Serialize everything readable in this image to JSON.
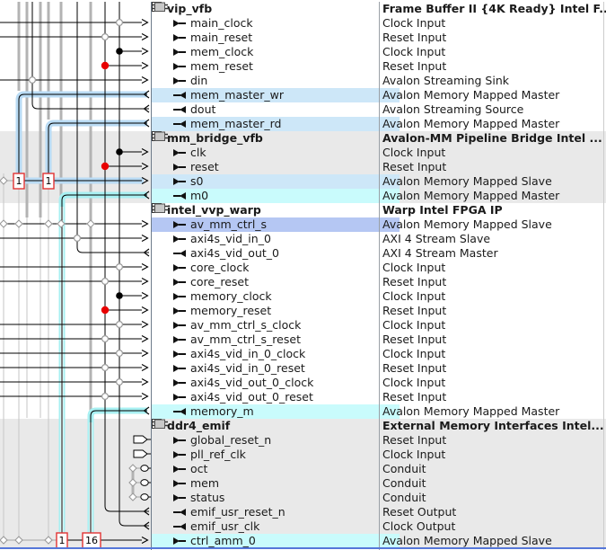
{
  "colors": {
    "group_gray": "#e9e9e9",
    "highlight_blue": "#cde7f8",
    "highlight_cyan": "#c9fbfc",
    "highlight_select": "#b5c7f3",
    "halo_blue": "#b9dbf4",
    "halo_cyan": "#a8f0f2",
    "wire_gray": "#b3b3b3",
    "junction_red": "#e80000",
    "arbitration_border": "#e23333",
    "bottom_indicator": "#5577d9"
  },
  "arbitration": {
    "s0": [
      "1",
      "1"
    ],
    "ctrl_amm_0": [
      "1",
      "16"
    ]
  },
  "rows": [
    {
      "type": "header",
      "name": "vip_vfb",
      "desc": "Frame Buffer II {4K Ready} Intel F...",
      "group": "white"
    },
    {
      "type": "signal",
      "dir": "in",
      "name": "main_clock",
      "desc": "Clock Input",
      "group": "white"
    },
    {
      "type": "signal",
      "dir": "in",
      "name": "main_reset",
      "desc": "Reset Input",
      "group": "white"
    },
    {
      "type": "signal",
      "dir": "in",
      "name": "mem_clock",
      "desc": "Clock Input",
      "group": "white"
    },
    {
      "type": "signal",
      "dir": "in",
      "name": "mem_reset",
      "desc": "Reset Input",
      "group": "white"
    },
    {
      "type": "signal",
      "dir": "in",
      "name": "din",
      "desc": "Avalon Streaming Sink",
      "group": "white"
    },
    {
      "type": "signal",
      "dir": "out",
      "name": "mem_master_wr",
      "desc": "Avalon Memory Mapped Master",
      "group": "white",
      "hl": "blue"
    },
    {
      "type": "signal",
      "dir": "out",
      "name": "dout",
      "desc": "Avalon Streaming Source",
      "group": "white"
    },
    {
      "type": "signal",
      "dir": "out",
      "name": "mem_master_rd",
      "desc": "Avalon Memory Mapped Master",
      "group": "white",
      "hl": "blue"
    },
    {
      "type": "header",
      "name": "mm_bridge_vfb",
      "desc": "Avalon-MM Pipeline Bridge Intel ...",
      "group": "gray"
    },
    {
      "type": "signal",
      "dir": "in",
      "name": "clk",
      "desc": "Clock Input",
      "group": "gray"
    },
    {
      "type": "signal",
      "dir": "in",
      "name": "reset",
      "desc": "Reset Input",
      "group": "gray"
    },
    {
      "type": "signal",
      "dir": "in",
      "name": "s0",
      "desc": "Avalon Memory Mapped Slave",
      "group": "gray",
      "hl": "blue"
    },
    {
      "type": "signal",
      "dir": "out",
      "name": "m0",
      "desc": "Avalon Memory Mapped Master",
      "group": "gray",
      "hl": "cyan"
    },
    {
      "type": "header",
      "name": "intel_vvp_warp",
      "desc": "Warp Intel FPGA IP",
      "group": "white"
    },
    {
      "type": "signal",
      "dir": "in",
      "name": "av_mm_ctrl_s",
      "desc": "Avalon Memory Mapped Slave",
      "group": "white",
      "hl": "select"
    },
    {
      "type": "signal",
      "dir": "in",
      "name": "axi4s_vid_in_0",
      "desc": "AXI 4 Stream Slave",
      "group": "white"
    },
    {
      "type": "signal",
      "dir": "out",
      "name": "axi4s_vid_out_0",
      "desc": "AXI 4 Stream Master",
      "group": "white"
    },
    {
      "type": "signal",
      "dir": "in",
      "name": "core_clock",
      "desc": "Clock Input",
      "group": "white"
    },
    {
      "type": "signal",
      "dir": "in",
      "name": "core_reset",
      "desc": "Reset Input",
      "group": "white"
    },
    {
      "type": "signal",
      "dir": "in",
      "name": "memory_clock",
      "desc": "Clock Input",
      "group": "white"
    },
    {
      "type": "signal",
      "dir": "in",
      "name": "memory_reset",
      "desc": "Reset Input",
      "group": "white"
    },
    {
      "type": "signal",
      "dir": "in",
      "name": "av_mm_ctrl_s_clock",
      "desc": "Clock Input",
      "group": "white"
    },
    {
      "type": "signal",
      "dir": "in",
      "name": "av_mm_ctrl_s_reset",
      "desc": "Reset Input",
      "group": "white"
    },
    {
      "type": "signal",
      "dir": "in",
      "name": "axi4s_vid_in_0_clock",
      "desc": "Clock Input",
      "group": "white"
    },
    {
      "type": "signal",
      "dir": "in",
      "name": "axi4s_vid_in_0_reset",
      "desc": "Reset Input",
      "group": "white"
    },
    {
      "type": "signal",
      "dir": "in",
      "name": "axi4s_vid_out_0_clock",
      "desc": "Clock Input",
      "group": "white"
    },
    {
      "type": "signal",
      "dir": "in",
      "name": "axi4s_vid_out_0_reset",
      "desc": "Reset Input",
      "group": "white"
    },
    {
      "type": "signal",
      "dir": "out",
      "name": "memory_m",
      "desc": "Avalon Memory Mapped Master",
      "group": "white",
      "hl": "cyan"
    },
    {
      "type": "header",
      "name": "ddr4_emif",
      "desc": "External Memory Interfaces Intel...",
      "group": "gray"
    },
    {
      "type": "signal",
      "dir": "in",
      "name": "global_reset_n",
      "desc": "Reset Input",
      "group": "gray"
    },
    {
      "type": "signal",
      "dir": "in",
      "name": "pll_ref_clk",
      "desc": "Clock Input",
      "group": "gray"
    },
    {
      "type": "signal",
      "dir": "in",
      "name": "oct",
      "desc": "Conduit",
      "group": "gray"
    },
    {
      "type": "signal",
      "dir": "in",
      "name": "mem",
      "desc": "Conduit",
      "group": "gray"
    },
    {
      "type": "signal",
      "dir": "in",
      "name": "status",
      "desc": "Conduit",
      "group": "gray"
    },
    {
      "type": "signal",
      "dir": "out",
      "name": "emif_usr_reset_n",
      "desc": "Reset Output",
      "group": "gray"
    },
    {
      "type": "signal",
      "dir": "out",
      "name": "emif_usr_clk",
      "desc": "Clock Output",
      "group": "gray"
    },
    {
      "type": "signal",
      "dir": "in",
      "name": "ctrl_amm_0",
      "desc": "Avalon Memory Mapped Slave",
      "group": "gray",
      "hl": "cyan"
    }
  ]
}
